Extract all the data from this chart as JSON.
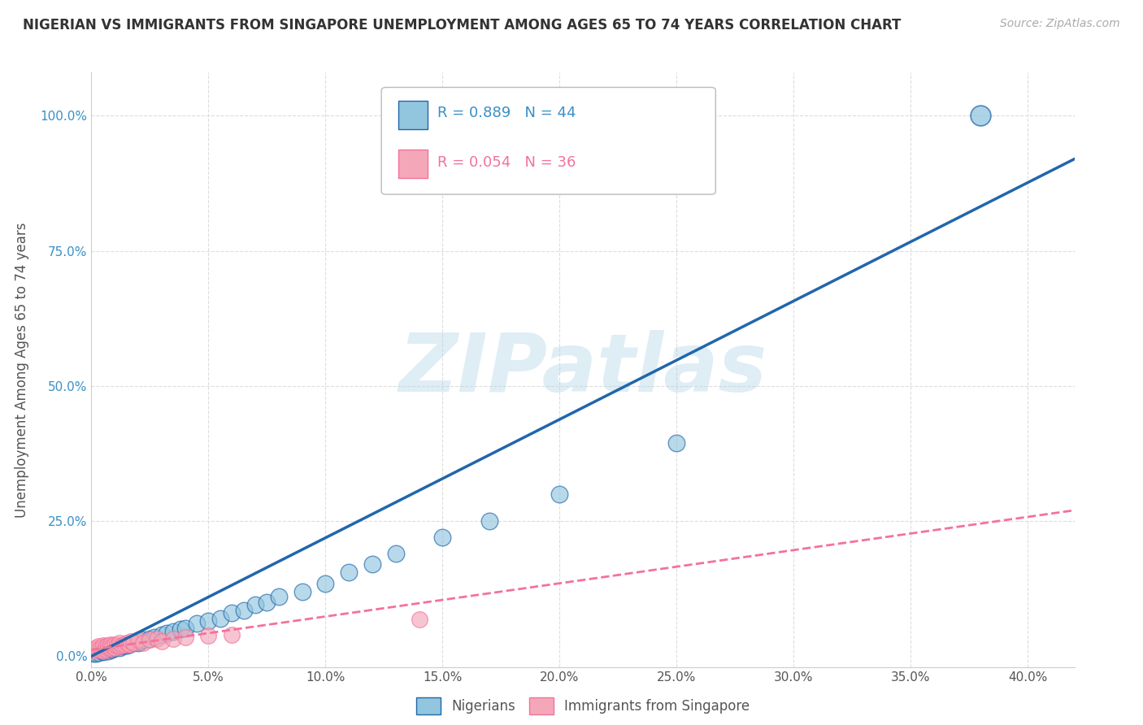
{
  "title": "NIGERIAN VS IMMIGRANTS FROM SINGAPORE UNEMPLOYMENT AMONG AGES 65 TO 74 YEARS CORRELATION CHART",
  "source": "Source: ZipAtlas.com",
  "xlim": [
    0.0,
    0.42
  ],
  "ylim": [
    -0.02,
    1.08
  ],
  "ylabel": "Unemployment Among Ages 65 to 74 years",
  "legend_label1": "Nigerians",
  "legend_label2": "Immigrants from Singapore",
  "R1": 0.889,
  "N1": 44,
  "R2": 0.054,
  "N2": 36,
  "color1": "#92c5de",
  "color2": "#f4a7b9",
  "line_color1": "#2166ac",
  "line_color2": "#f4729a",
  "watermark": "ZIPatlas",
  "background_color": "#ffffff",
  "grid_color": "#dddddd",
  "nigerian_x": [
    0.001,
    0.002,
    0.003,
    0.005,
    0.005,
    0.007,
    0.008,
    0.009,
    0.01,
    0.01,
    0.012,
    0.013,
    0.014,
    0.015,
    0.016,
    0.018,
    0.02,
    0.021,
    0.022,
    0.025,
    0.027,
    0.03,
    0.032,
    0.035,
    0.038,
    0.04,
    0.045,
    0.05,
    0.055,
    0.06,
    0.065,
    0.07,
    0.075,
    0.08,
    0.09,
    0.1,
    0.11,
    0.12,
    0.13,
    0.15,
    0.17,
    0.2,
    0.25,
    0.38
  ],
  "nigerian_y": [
    0.005,
    0.005,
    0.006,
    0.008,
    0.01,
    0.01,
    0.012,
    0.013,
    0.015,
    0.016,
    0.015,
    0.018,
    0.02,
    0.02,
    0.022,
    0.025,
    0.025,
    0.028,
    0.03,
    0.032,
    0.035,
    0.04,
    0.042,
    0.045,
    0.05,
    0.052,
    0.06,
    0.065,
    0.07,
    0.08,
    0.085,
    0.095,
    0.1,
    0.11,
    0.12,
    0.135,
    0.155,
    0.17,
    0.19,
    0.22,
    0.25,
    0.3,
    0.395,
    1.0
  ],
  "singapore_x": [
    0.001,
    0.002,
    0.002,
    0.003,
    0.003,
    0.004,
    0.005,
    0.005,
    0.006,
    0.006,
    0.007,
    0.007,
    0.008,
    0.008,
    0.009,
    0.01,
    0.01,
    0.011,
    0.012,
    0.012,
    0.013,
    0.014,
    0.015,
    0.016,
    0.017,
    0.018,
    0.02,
    0.022,
    0.025,
    0.028,
    0.03,
    0.035,
    0.04,
    0.05,
    0.06,
    0.14
  ],
  "singapore_y": [
    0.01,
    0.012,
    0.015,
    0.012,
    0.018,
    0.015,
    0.01,
    0.02,
    0.012,
    0.018,
    0.015,
    0.02,
    0.016,
    0.022,
    0.018,
    0.015,
    0.022,
    0.02,
    0.018,
    0.025,
    0.02,
    0.022,
    0.025,
    0.022,
    0.028,
    0.025,
    0.03,
    0.025,
    0.03,
    0.032,
    0.028,
    0.032,
    0.035,
    0.038,
    0.04,
    0.068
  ],
  "nig_line_x": [
    0.0,
    0.42
  ],
  "nig_line_y": [
    0.0,
    0.92
  ],
  "sing_line_x": [
    0.0,
    0.42
  ],
  "sing_line_y": [
    0.012,
    0.27
  ]
}
